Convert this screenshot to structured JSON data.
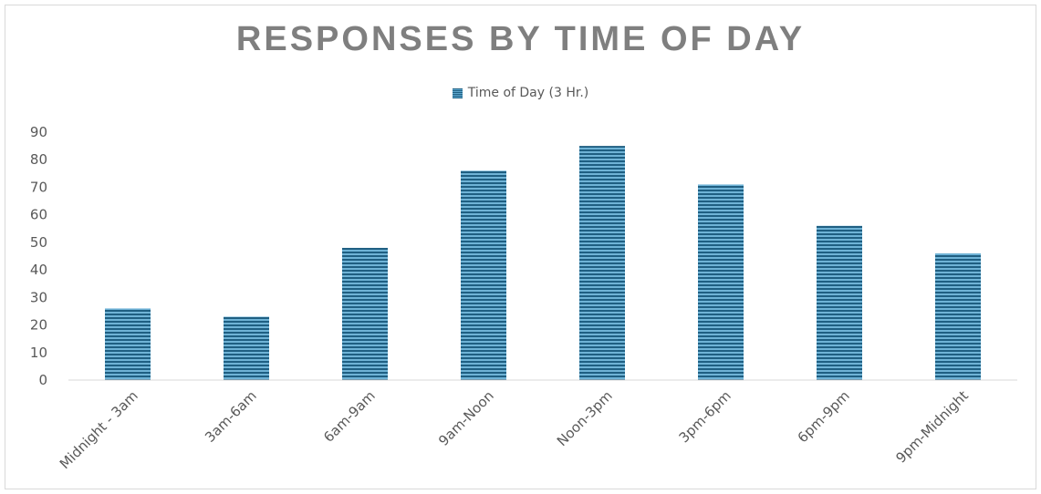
{
  "chart_data": {
    "type": "bar",
    "title": "RESPONSES BY TIME OF DAY",
    "categories": [
      "Midnight - 3am",
      "3am-6am",
      "6am-9am",
      "9am-Noon",
      "Noon-3pm",
      "3pm-6pm",
      "6pm-9pm",
      "9pm-Midnight"
    ],
    "series": [
      {
        "name": "Time of Day (3 Hr.)",
        "values": [
          26,
          23,
          48,
          76,
          85,
          71,
          56,
          46
        ]
      }
    ],
    "ylim": [
      0,
      90
    ],
    "yticks": [
      0,
      10,
      20,
      30,
      40,
      50,
      60,
      70,
      80,
      90
    ],
    "legend_position": "top",
    "grid": false,
    "bar_color": "#2e7aa3"
  }
}
